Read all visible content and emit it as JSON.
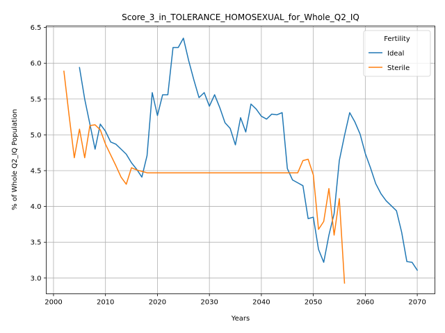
{
  "chart_data": {
    "type": "line",
    "title": "Score_3_in_TOLERANCE_HOMOSEXUAL_for_Whole_Q2_IQ",
    "xlabel": "Years",
    "ylabel": "% of Whole Q2_IQ Population",
    "xlim": [
      1998.6,
      2073.4
    ],
    "ylim": [
      2.78,
      6.52
    ],
    "xticks": [
      2000,
      2010,
      2020,
      2030,
      2040,
      2050,
      2060,
      2070
    ],
    "yticks": [
      3.0,
      3.5,
      4.0,
      4.5,
      5.0,
      5.5,
      6.0,
      6.5
    ],
    "xtick_labels": [
      "2000",
      "2010",
      "2020",
      "2030",
      "2040",
      "2050",
      "2060",
      "2070"
    ],
    "ytick_labels": [
      "3.0",
      "3.5",
      "4.0",
      "4.5",
      "5.0",
      "5.5",
      "6.0",
      "6.5"
    ],
    "grid": true,
    "legend": {
      "title": "Fertility",
      "placement": "top-right"
    },
    "series": [
      {
        "name": "Ideal",
        "color": "#1f77b4",
        "x": [
          2005,
          2006,
          2007,
          2008,
          2009,
          2010,
          2011,
          2012,
          2013,
          2014,
          2015,
          2016,
          2017,
          2018,
          2019,
          2020,
          2021,
          2022,
          2023,
          2024,
          2025,
          2026,
          2027,
          2028,
          2029,
          2030,
          2031,
          2032,
          2033,
          2034,
          2035,
          2036,
          2037,
          2038,
          2039,
          2040,
          2041,
          2042,
          2043,
          2044,
          2045,
          2046,
          2047,
          2048,
          2049,
          2050,
          2051,
          2052,
          2053,
          2054,
          2055,
          2056,
          2057,
          2058,
          2059,
          2060,
          2061,
          2062,
          2063,
          2064,
          2065,
          2066,
          2067,
          2068,
          2069,
          2070
        ],
        "y": [
          5.94,
          5.5,
          5.15,
          4.8,
          5.15,
          5.05,
          4.9,
          4.87,
          4.8,
          4.73,
          4.61,
          4.52,
          4.41,
          4.71,
          5.59,
          5.27,
          5.56,
          5.56,
          6.22,
          6.22,
          6.35,
          6.04,
          5.77,
          5.52,
          5.59,
          5.4,
          5.56,
          5.38,
          5.17,
          5.09,
          4.86,
          5.24,
          5.04,
          5.43,
          5.36,
          5.26,
          5.22,
          5.29,
          5.28,
          5.31,
          4.53,
          4.37,
          4.33,
          4.29,
          3.83,
          3.85,
          3.4,
          3.22,
          3.6,
          3.9,
          4.64,
          4.99,
          5.31,
          5.18,
          5.01,
          4.74,
          4.54,
          4.32,
          4.18,
          4.08,
          4.01,
          3.94,
          3.64,
          3.23,
          3.22,
          3.11
        ]
      },
      {
        "name": "Sterile",
        "color": "#ff7f0e",
        "x": [
          2002,
          2003,
          2004,
          2005,
          2006,
          2007,
          2008,
          2009,
          2010,
          2011,
          2012,
          2013,
          2014,
          2015,
          2016,
          2017,
          2018,
          2019,
          2020,
          2025,
          2030,
          2035,
          2040,
          2045,
          2046,
          2047,
          2048,
          2049,
          2050,
          2051,
          2052,
          2053,
          2054,
          2055,
          2056
        ],
        "y": [
          5.89,
          5.27,
          4.68,
          5.08,
          4.68,
          5.13,
          5.14,
          5.07,
          4.87,
          4.72,
          4.57,
          4.41,
          4.31,
          4.54,
          4.51,
          4.49,
          4.47,
          4.47,
          4.47,
          4.47,
          4.47,
          4.47,
          4.47,
          4.47,
          4.47,
          4.47,
          4.64,
          4.66,
          4.44,
          3.68,
          3.79,
          4.25,
          3.6,
          4.11,
          2.93
        ]
      }
    ]
  }
}
